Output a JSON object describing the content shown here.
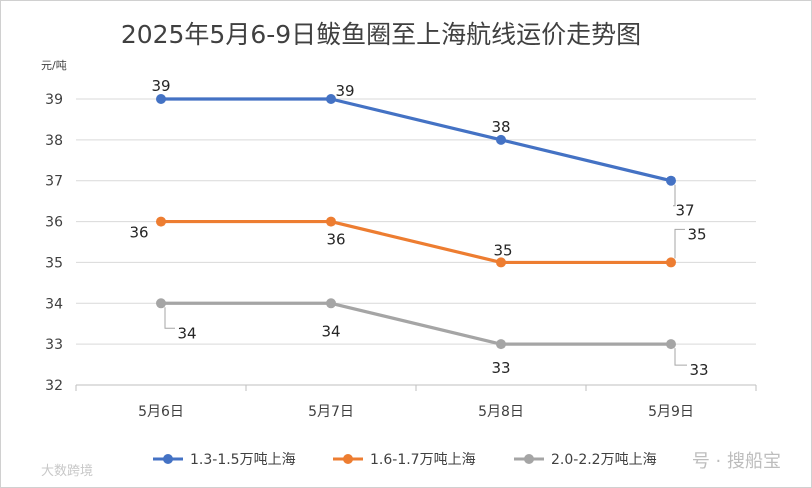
{
  "chart_data": {
    "type": "line",
    "title": "2025年5月6-9日鲅鱼圈至上海航线运价走势图",
    "ylabel": "元/吨",
    "xlabel": "",
    "ylim": [
      32,
      39
    ],
    "yticks": [
      32,
      33,
      34,
      35,
      36,
      37,
      38,
      39
    ],
    "grid": true,
    "legend_position": "bottom",
    "categories": [
      "5月6日",
      "5月7日",
      "5月8日",
      "5月9日"
    ],
    "series": [
      {
        "name": "1.3-1.5万吨上海",
        "color": "#4472C4",
        "values": [
          39,
          39,
          38,
          37
        ]
      },
      {
        "name": "1.6-1.7万吨上海",
        "color": "#ED7D31",
        "values": [
          36,
          36,
          35,
          35
        ]
      },
      {
        "name": "2.0-2.2万吨上海",
        "color": "#A5A5A5",
        "values": [
          34,
          34,
          33,
          33
        ]
      }
    ]
  },
  "watermarks": {
    "right": "号 · 搜船宝",
    "left": "大数跨境"
  }
}
